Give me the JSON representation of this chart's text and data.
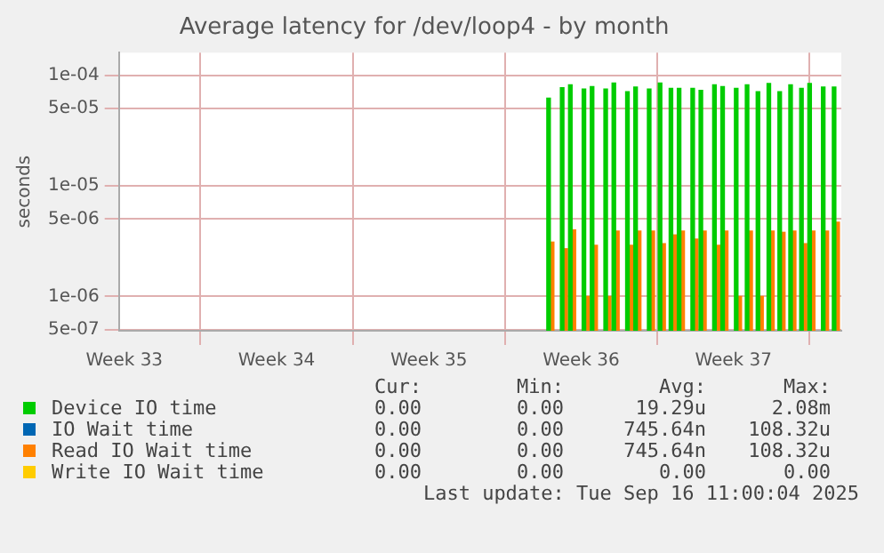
{
  "chart_data": {
    "type": "bar",
    "title": "Average latency for /dev/loop4 - by month",
    "ylabel": "seconds",
    "log": "y",
    "grid": true,
    "legend": "bottom",
    "x": [
      "2025-09-03T02:00",
      "2025-09-03T17:00",
      "2025-09-04T02:00",
      "2025-09-04T17:00",
      "2025-09-05T02:00",
      "2025-09-05T17:00",
      "2025-09-06T02:00",
      "2025-09-06T17:00",
      "2025-09-07T02:00",
      "2025-09-07T17:00",
      "2025-09-08T05:00",
      "2025-09-08T17:00",
      "2025-09-09T02:00",
      "2025-09-09T17:00",
      "2025-09-10T02:00",
      "2025-09-10T17:00",
      "2025-09-11T02:00",
      "2025-09-11T17:00",
      "2025-09-12T05:00",
      "2025-09-12T17:00",
      "2025-09-13T05:00",
      "2025-09-13T17:00",
      "2025-09-14T05:00",
      "2025-09-14T17:00",
      "2025-09-15T02:00",
      "2025-09-15T17:00",
      "2025-09-16T05:00"
    ],
    "xlim": [
      "2025-08-14T06:00",
      "2025-09-16T11:00"
    ],
    "xticks": [
      {
        "value": "2025-08-14T12:00",
        "label": "Week 33"
      },
      {
        "value": "2025-08-21T12:00",
        "label": "Week 34"
      },
      {
        "value": "2025-08-28T12:00",
        "label": "Week 35"
      },
      {
        "value": "2025-09-04T12:00",
        "label": "Week 36"
      },
      {
        "value": "2025-09-11T12:00",
        "label": "Week 37"
      }
    ],
    "ylim": [
      4.9e-07,
      0.00016
    ],
    "yticks": [
      {
        "value": 5e-07,
        "label": "5e-07"
      },
      {
        "value": 1e-06,
        "label": "1e-06"
      },
      {
        "value": 5e-06,
        "label": "5e-06"
      },
      {
        "value": 1e-05,
        "label": "1e-05"
      },
      {
        "value": 5e-05,
        "label": "5e-05"
      },
      {
        "value": 0.0001,
        "label": "1e-04"
      }
    ],
    "series": [
      {
        "name": "Device IO time",
        "color": "#00cc00",
        "values": [
          6.2e-05,
          7.7e-05,
          8.2e-05,
          7.5e-05,
          7.9e-05,
          7.5e-05,
          8.5e-05,
          7.1e-05,
          7.8e-05,
          7.5e-05,
          8.5e-05,
          7.6e-05,
          7.6e-05,
          7.6e-05,
          7.3e-05,
          8.2e-05,
          7.9e-05,
          7.6e-05,
          8.2e-05,
          7.1e-05,
          8.4e-05,
          7.1e-05,
          8.2e-05,
          7.6e-05,
          8.4e-05,
          7.8e-05,
          7.8e-05
        ]
      },
      {
        "name": "IO Wait time",
        "color": "#0066b3",
        "values": [
          null,
          null,
          null,
          null,
          null,
          null,
          null,
          null,
          null,
          null,
          null,
          null,
          null,
          null,
          null,
          null,
          null,
          null,
          null,
          null,
          null,
          null,
          null,
          null,
          null,
          null,
          null
        ]
      },
      {
        "name": "Read IO Wait time",
        "color": "#ff8000",
        "values": [
          3.1e-06,
          2.7e-06,
          4e-06,
          1e-06,
          2.9e-06,
          1e-06,
          3.9e-06,
          2.9e-06,
          3.9e-06,
          3.9e-06,
          3e-06,
          3.6e-06,
          3.9e-06,
          3.3e-06,
          3.9e-06,
          2.9e-06,
          3.9e-06,
          1e-06,
          3.9e-06,
          1e-06,
          3.9e-06,
          3.8e-06,
          3.9e-06,
          3e-06,
          3.9e-06,
          3.9e-06,
          4.7e-06
        ]
      },
      {
        "name": "Write IO Wait time",
        "color": "#ffcc00",
        "values": [
          null,
          null,
          null,
          null,
          null,
          null,
          null,
          null,
          null,
          null,
          null,
          null,
          null,
          null,
          null,
          null,
          null,
          null,
          null,
          null,
          null,
          null,
          null,
          null,
          null,
          null,
          null
        ]
      }
    ],
    "annotations": [
      "Cur:",
      "Min:",
      "Avg:",
      "Max:",
      "0.00",
      "0.00",
      "19.29u",
      "2.08m",
      "0.00",
      "0.00",
      "745.64n",
      "108.32u",
      "0.00",
      "0.00",
      "745.64n",
      "108.32u",
      "0.00",
      "0.00",
      "0.00",
      "0.00",
      "Last update: Tue Sep 16 11:00:04 2025"
    ]
  }
}
